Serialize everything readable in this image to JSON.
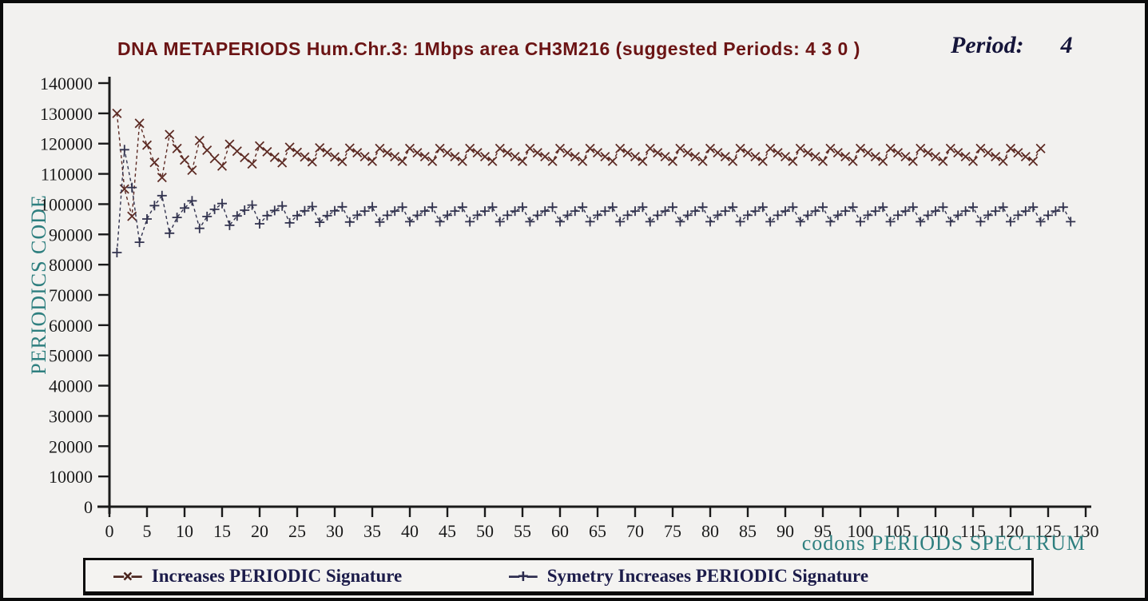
{
  "title": {
    "text": "DNA METAPERIODS Hum.Chr.3: 1Mbps area CH3M216 (suggested Periods: 4 3 0 )",
    "color": "#6b1414"
  },
  "period": {
    "label": "Period:",
    "value": "4"
  },
  "colors": {
    "background": "#f2f1ef",
    "frame_border": "#0b0b0b",
    "axis": "#1a1a1a",
    "axis_label_teal": "#2e7f7f",
    "legend_text": "#1c1c4a",
    "series_increases": "#5d2b24",
    "series_symetry": "#32334f"
  },
  "legend": {
    "entries": [
      {
        "marker": "—×—",
        "label": "Increases PERIODIC Signature",
        "color": "#4a241e"
      },
      {
        "marker": "—+—",
        "label": "Symetry Increases PERIODIC Signature",
        "color": "#2c2c4e"
      }
    ]
  },
  "chart_data": {
    "type": "line",
    "title": "DNA METAPERIODS Hum.Chr.3: 1Mbps area CH3M216 (suggested Periods: 4 3 0 )",
    "xlabel": "codons PERIODS SPECTRUM",
    "ylabel": "PERIODICS CODE",
    "xlim": [
      0,
      130
    ],
    "ylim": [
      0,
      140000
    ],
    "grid": false,
    "legend_position": "bottom",
    "x_ticks": [
      0,
      5,
      10,
      15,
      20,
      25,
      30,
      35,
      40,
      45,
      50,
      55,
      60,
      65,
      70,
      75,
      80,
      85,
      90,
      95,
      100,
      105,
      110,
      115,
      120,
      125,
      130
    ],
    "y_ticks": [
      0,
      10000,
      20000,
      30000,
      40000,
      50000,
      60000,
      70000,
      80000,
      90000,
      100000,
      110000,
      120000,
      130000,
      140000
    ],
    "x_start": 1,
    "x_step": 1,
    "series": [
      {
        "name": "Increases PERIODIC Signature",
        "marker": "x",
        "linestyle": "dashed",
        "color": "#5d2b24",
        "values": [
          130000,
          105000,
          96000,
          126700,
          119500,
          113800,
          108800,
          123000,
          118400,
          114600,
          111200,
          121000,
          117800,
          115100,
          112600,
          119800,
          117500,
          115400,
          113300,
          119200,
          117300,
          115500,
          113700,
          118800,
          117100,
          115600,
          114000,
          118600,
          117100,
          115600,
          114100,
          118500,
          117000,
          115700,
          114200,
          118400,
          117000,
          115700,
          114200,
          118400,
          117000,
          115700,
          114200,
          118400,
          117000,
          115700,
          114200,
          118400,
          117000,
          115700,
          114200,
          118400,
          117000,
          115700,
          114200,
          118400,
          117000,
          115700,
          114200,
          118400,
          117000,
          115700,
          114200,
          118400,
          117000,
          115700,
          114200,
          118400,
          117000,
          115700,
          114200,
          118400,
          117000,
          115700,
          114200,
          118400,
          117000,
          115700,
          114200,
          118400,
          117000,
          115700,
          114200,
          118400,
          117000,
          115700,
          114200,
          118400,
          117000,
          115700,
          114200,
          118400,
          117000,
          115700,
          114200,
          118400,
          117000,
          115700,
          114200,
          118400,
          117000,
          115700,
          114200,
          118400,
          117000,
          115700,
          114200,
          118400,
          117000,
          115700,
          114200,
          118400,
          117000,
          115700,
          114200,
          118400,
          117000,
          115700,
          114200,
          118400,
          117000,
          115700,
          114200,
          118400
        ]
      },
      {
        "name": "Symetry Increases PERIODIC Signature",
        "marker": "+",
        "linestyle": "dashed",
        "color": "#32334f",
        "values": [
          84000,
          118000,
          105500,
          87400,
          95100,
          99500,
          102800,
          90400,
          95600,
          98700,
          101100,
          92000,
          95900,
          98300,
          100200,
          93000,
          96100,
          98000,
          99700,
          93500,
          96200,
          97900,
          99400,
          93800,
          96200,
          97800,
          99200,
          94000,
          96200,
          97800,
          99100,
          94100,
          96300,
          97700,
          99100,
          94100,
          96300,
          97700,
          99000,
          94200,
          96300,
          97700,
          99000,
          94200,
          96300,
          97700,
          99000,
          94200,
          96300,
          97700,
          99000,
          94200,
          96300,
          97700,
          99000,
          94200,
          96300,
          97700,
          99000,
          94200,
          96300,
          97700,
          99000,
          94200,
          96300,
          97700,
          99000,
          94200,
          96300,
          97700,
          99000,
          94200,
          96300,
          97700,
          99000,
          94200,
          96300,
          97700,
          99000,
          94200,
          96300,
          97700,
          99000,
          94200,
          96300,
          97700,
          99000,
          94200,
          96300,
          97700,
          99000,
          94200,
          96300,
          97700,
          99000,
          94200,
          96300,
          97700,
          99000,
          94200,
          96300,
          97700,
          99000,
          94200,
          96300,
          97700,
          99000,
          94200,
          96300,
          97700,
          99000,
          94200,
          96300,
          97700,
          99000,
          94200,
          96300,
          97700,
          99000,
          94200,
          96300,
          97700,
          99000,
          94200,
          96300,
          97700,
          99000,
          94200
        ]
      }
    ]
  }
}
